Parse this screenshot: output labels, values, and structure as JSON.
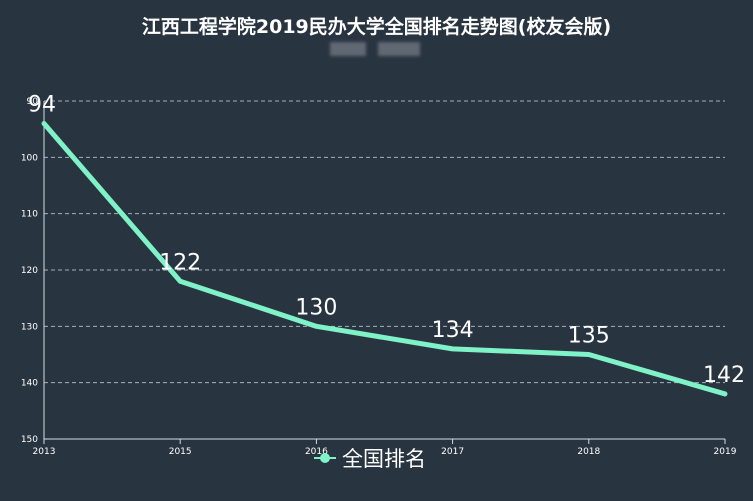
{
  "chart_data": {
    "type": "line",
    "title": "江西工程学院2019民办大学全国排名走势图(校友会版)",
    "x": [
      "2013",
      "2015",
      "2016",
      "2017",
      "2018",
      "2019"
    ],
    "series": [
      {
        "name": "全国排名",
        "values": [
          94,
          122,
          130,
          134,
          135,
          142
        ]
      }
    ],
    "ylim": [
      90,
      150
    ],
    "y_inverted": true,
    "yticks": [
      "90",
      "100",
      "110",
      "120",
      "130",
      "140",
      "150"
    ],
    "grid": true,
    "legend": "bottom-center",
    "colors": {
      "line": "#7ff2c8",
      "background": "#293441",
      "grid": "#a8b0b8"
    }
  }
}
